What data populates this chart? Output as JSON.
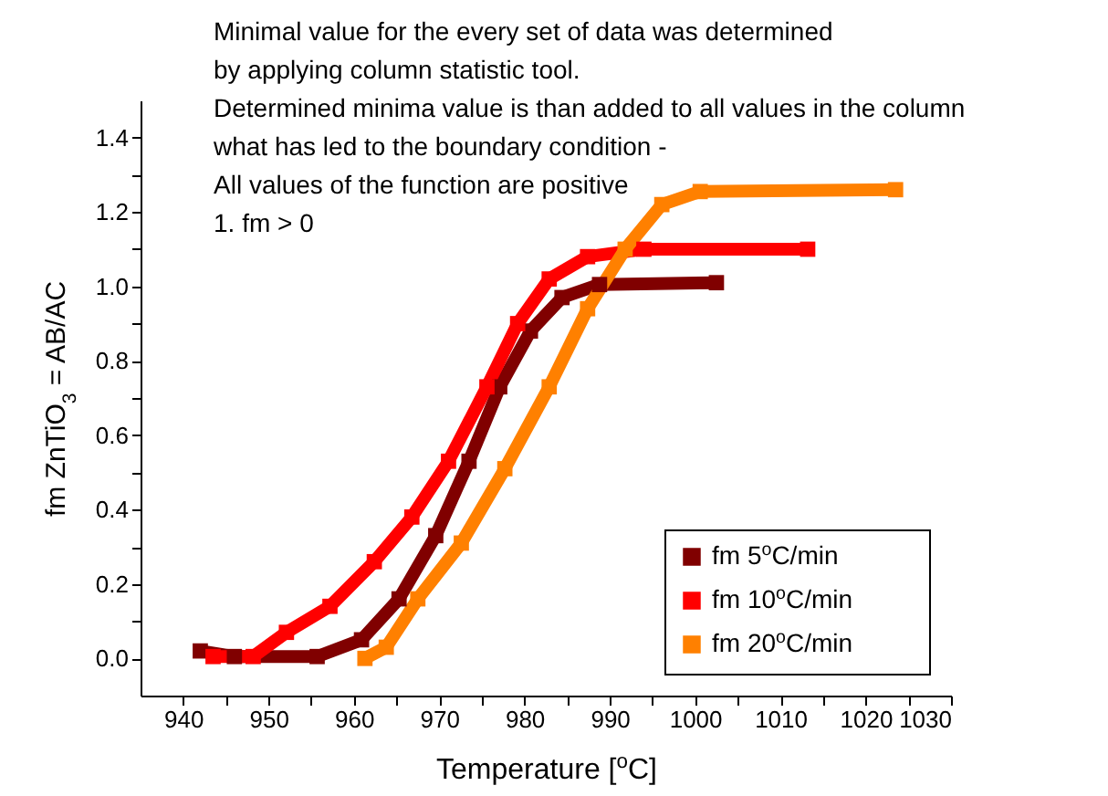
{
  "chart_data": {
    "type": "line",
    "xlabel": "Temperature [$^{o}$C]",
    "ylabel": "fm ZnTiO$_{3}$ = AB/AC",
    "annotations": [
      "Minimal value for the every set of data was determined",
      "by applying column statistic tool.",
      "Determined minima value is than added to all values in the column",
      "what has led to the boundary condition -",
      "All values of the function are positive",
      "1. fm > 0"
    ],
    "xlim": [
      935,
      1030
    ],
    "xticks": [
      940,
      {
        "value": 945,
        "label": null
      },
      950,
      {
        "value": 955,
        "label": null
      },
      960,
      {
        "value": 965,
        "label": null
      },
      970,
      {
        "value": 975,
        "label": null
      },
      980,
      {
        "value": 985,
        "label": null
      },
      990,
      {
        "value": 995,
        "label": null
      },
      1000,
      {
        "value": 1005,
        "label": null
      },
      1010,
      {
        "value": 1015,
        "label": null
      },
      1020,
      {
        "value": 1025,
        "label": null
      },
      1030
    ],
    "ylim": [
      -0.1,
      1.5
    ],
    "yticks": [
      {
        "value": 0,
        "label": "0.0"
      },
      {
        "value": 0.1,
        "label": null
      },
      {
        "value": 0.2,
        "label": "0.2"
      },
      {
        "value": 0.3,
        "label": null
      },
      {
        "value": 0.4,
        "label": "0.4"
      },
      {
        "value": 0.5,
        "label": null
      },
      {
        "value": 0.6,
        "label": "0.6"
      },
      {
        "value": 0.7,
        "label": null
      },
      {
        "value": 0.8,
        "label": "0.8"
      },
      {
        "value": 0.9,
        "label": null
      },
      {
        "value": 1.0,
        "label": "1.0"
      },
      {
        "value": 1.1,
        "label": null
      },
      {
        "value": 1.2,
        "label": "1.2"
      },
      {
        "value": 1.3,
        "label": null
      },
      {
        "value": 1.4,
        "label": "1.4"
      }
    ],
    "grid": false,
    "legend": "bottom right",
    "marker": "square",
    "line_style": "solid",
    "series": [
      {
        "name": "fm 5$^{o}$C/min",
        "color": "#800000",
        "x": [
          942.0,
          946.0,
          955.7,
          960.9,
          965.3,
          969.6,
          973.5,
          977.1,
          980.7,
          984.4,
          988.8,
          1002.5
        ],
        "values": [
          0.02,
          0.005,
          0.005,
          0.05,
          0.16,
          0.33,
          0.53,
          0.73,
          0.88,
          0.97,
          1.005,
          1.01
        ]
      },
      {
        "name": "fm 10$^{o}$C/min",
        "color": "#ff0000",
        "x": [
          943.5,
          948.2,
          952.1,
          957.2,
          962.4,
          966.8,
          971.1,
          975.6,
          979.2,
          982.9,
          987.4,
          994.0,
          1013.2
        ],
        "values": [
          0.005,
          0.005,
          0.07,
          0.14,
          0.26,
          0.38,
          0.53,
          0.73,
          0.9,
          1.02,
          1.08,
          1.1,
          1.1
        ]
      },
      {
        "name": "fm 20$^{o}$C/min",
        "color": "#ff8000",
        "x": [
          961.3,
          963.8,
          967.5,
          972.6,
          977.7,
          982.9,
          987.4,
          991.8,
          996.1,
          1000.6,
          1023.5
        ],
        "values": [
          0.0,
          0.03,
          0.16,
          0.31,
          0.51,
          0.73,
          0.94,
          1.1,
          1.22,
          1.255,
          1.26
        ]
      }
    ]
  }
}
